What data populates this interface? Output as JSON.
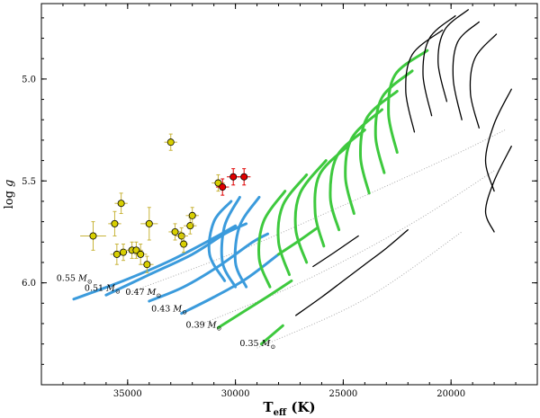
{
  "chart_data": {
    "type": "line",
    "title": "",
    "xlabel": "T_eff (K)",
    "xlabel_main": "T",
    "xlabel_sub": "eff",
    "xlabel_unit": " (K)",
    "ylabel": "log g",
    "ylabel_main": "log ",
    "ylabel_var": "g",
    "xlim": [
      39000,
      16000
    ],
    "ylim": [
      6.5,
      4.63
    ],
    "x_ticks": [
      35000,
      30000,
      25000,
      20000
    ],
    "x_tick_labels": [
      "35000",
      "30000",
      "25000",
      "20000"
    ],
    "y_ticks": [
      5.0,
      5.5,
      6.0
    ],
    "y_tick_labels": [
      "5.0",
      "5.5",
      "6.0"
    ],
    "colors": {
      "blue": "#3b9bdc",
      "green": "#3ec93e",
      "black": "#000000",
      "grey": "#aaaaaa",
      "yellow": "#d8cf00",
      "yellow_err": "#c8b43a",
      "red": "#e00000"
    },
    "mass_labels": [
      {
        "text": "0.55",
        "unit": "M",
        "sub": "⊙",
        "x": 38300,
        "y": 5.99
      },
      {
        "text": "0.51",
        "unit": "M",
        "sub": "⊙",
        "x": 37000,
        "y": 6.04
      },
      {
        "text": "0.47",
        "unit": "M",
        "sub": "⊙",
        "x": 35100,
        "y": 6.06
      },
      {
        "text": "0.43",
        "unit": "M",
        "sub": "⊙",
        "x": 33900,
        "y": 6.14
      },
      {
        "text": "0.39",
        "unit": "M",
        "sub": "⊙",
        "x": 32300,
        "y": 6.22
      },
      {
        "text": "0.35",
        "unit": "M",
        "sub": "⊙",
        "x": 29800,
        "y": 6.31
      }
    ],
    "series": [
      {
        "name": "Yellow observed stars",
        "color": "#d8cf00",
        "points": [
          {
            "x": 33000,
            "y": 5.31,
            "xerr": 300,
            "yerr": 0.04
          },
          {
            "x": 36600,
            "y": 5.77,
            "xerr": 600,
            "yerr": 0.07
          },
          {
            "x": 35600,
            "y": 5.71,
            "xerr": 300,
            "yerr": 0.06
          },
          {
            "x": 35300,
            "y": 5.61,
            "xerr": 300,
            "yerr": 0.05
          },
          {
            "x": 34000,
            "y": 5.71,
            "xerr": 400,
            "yerr": 0.08
          },
          {
            "x": 35500,
            "y": 5.86,
            "xerr": 300,
            "yerr": 0.05
          },
          {
            "x": 35200,
            "y": 5.85,
            "xerr": 200,
            "yerr": 0.04
          },
          {
            "x": 34800,
            "y": 5.84,
            "xerr": 300,
            "yerr": 0.04
          },
          {
            "x": 34600,
            "y": 5.84,
            "xerr": 300,
            "yerr": 0.04
          },
          {
            "x": 34400,
            "y": 5.86,
            "xerr": 300,
            "yerr": 0.05
          },
          {
            "x": 34100,
            "y": 5.91,
            "xerr": 300,
            "yerr": 0.04
          },
          {
            "x": 32800,
            "y": 5.75,
            "xerr": 300,
            "yerr": 0.04
          },
          {
            "x": 32500,
            "y": 5.77,
            "xerr": 300,
            "yerr": 0.04
          },
          {
            "x": 32400,
            "y": 5.81,
            "xerr": 200,
            "yerr": 0.04
          },
          {
            "x": 32100,
            "y": 5.72,
            "xerr": 300,
            "yerr": 0.04
          },
          {
            "x": 32000,
            "y": 5.67,
            "xerr": 300,
            "yerr": 0.04
          },
          {
            "x": 30800,
            "y": 5.51,
            "xerr": 300,
            "yerr": 0.04
          }
        ]
      },
      {
        "name": "Red observed stars",
        "color": "#e00000",
        "points": [
          {
            "x": 30600,
            "y": 5.53,
            "xerr": 300,
            "yerr": 0.04
          },
          {
            "x": 30100,
            "y": 5.48,
            "xerr": 300,
            "yerr": 0.04
          },
          {
            "x": 29600,
            "y": 5.48,
            "xerr": 300,
            "yerr": 0.04
          }
        ]
      },
      {
        "name": "Evolutionary tracks",
        "colors_by_phase": [
          "#3b9bdc",
          "#3ec93e",
          "#000000"
        ],
        "masses": [
          "0.35",
          "0.39",
          "0.43",
          "0.47",
          "0.51",
          "0.55"
        ]
      }
    ],
    "tracks": [
      {
        "mass": "0.55",
        "color": "#3b9bdc",
        "style": "solid",
        "points": [
          [
            37500,
            6.08
          ],
          [
            35200,
            5.99
          ],
          [
            33000,
            5.89
          ],
          [
            31000,
            5.78
          ],
          [
            30000,
            5.72
          ]
        ]
      },
      {
        "mass": "0.51",
        "color": "#3b9bdc",
        "style": "solid",
        "points": [
          [
            36000,
            6.06
          ],
          [
            34000,
            5.96
          ],
          [
            32000,
            5.86
          ],
          [
            30500,
            5.76
          ],
          [
            29500,
            5.71
          ]
        ]
      },
      {
        "mass": "0.47",
        "color": "#3b9bdc",
        "style": "solid",
        "points": [
          [
            34000,
            6.09
          ],
          [
            32400,
            6.02
          ],
          [
            30800,
            5.92
          ],
          [
            29200,
            5.8
          ],
          [
            28500,
            5.76
          ]
        ]
      },
      {
        "mass": "0.43",
        "color": "#3b9bdc",
        "style": "solid",
        "points": [
          [
            32500,
            6.15
          ],
          [
            31000,
            6.07
          ],
          [
            29500,
            5.98
          ],
          [
            28000,
            5.86
          ]
        ]
      },
      {
        "mass": "0.43",
        "color": "#3ec93e",
        "style": "solid",
        "points": [
          [
            28000,
            5.86
          ],
          [
            27000,
            5.79
          ],
          [
            26200,
            5.73
          ]
        ]
      },
      {
        "mass": "0.39",
        "color": "#3ec93e",
        "style": "solid",
        "points": [
          [
            30800,
            6.22
          ],
          [
            29600,
            6.14
          ],
          [
            28400,
            6.06
          ],
          [
            27400,
            5.99
          ]
        ]
      },
      {
        "mass": "0.39",
        "color": "#000000",
        "style": "solid",
        "points": [
          [
            26400,
            5.92
          ],
          [
            25400,
            5.85
          ],
          [
            24300,
            5.77
          ]
        ]
      },
      {
        "mass": "0.35",
        "color": "#3ec93e",
        "style": "solid",
        "points": [
          [
            28800,
            6.3
          ],
          [
            27800,
            6.21
          ]
        ]
      },
      {
        "mass": "0.35",
        "color": "#000000",
        "style": "solid",
        "points": [
          [
            27200,
            6.16
          ],
          [
            26000,
            6.07
          ],
          [
            25000,
            5.99
          ],
          [
            24000,
            5.91
          ],
          [
            23000,
            5.83
          ],
          [
            22000,
            5.74
          ]
        ]
      }
    ],
    "loops": [
      {
        "color": "#3b9bdc",
        "points": [
          [
            30200,
            5.6
          ],
          [
            31000,
            5.7
          ],
          [
            31200,
            5.86
          ],
          [
            30500,
            5.99
          ]
        ]
      },
      {
        "color": "#3b9bdc",
        "points": [
          [
            29800,
            5.58
          ],
          [
            30500,
            5.72
          ],
          [
            30600,
            5.9
          ],
          [
            30000,
            6.02
          ]
        ]
      },
      {
        "color": "#3b9bdc",
        "points": [
          [
            28900,
            5.58
          ],
          [
            29800,
            5.72
          ],
          [
            30000,
            5.9
          ],
          [
            29500,
            6.02
          ]
        ]
      },
      {
        "color": "#3ec93e",
        "points": [
          [
            27700,
            5.55
          ],
          [
            28700,
            5.7
          ],
          [
            28900,
            5.88
          ],
          [
            28400,
            6.02
          ]
        ]
      },
      {
        "color": "#3ec93e",
        "points": [
          [
            26700,
            5.47
          ],
          [
            27800,
            5.62
          ],
          [
            28000,
            5.8
          ],
          [
            27500,
            5.96
          ]
        ]
      },
      {
        "color": "#3ec93e",
        "points": [
          [
            25800,
            5.4
          ],
          [
            27000,
            5.56
          ],
          [
            27200,
            5.74
          ],
          [
            26700,
            5.9
          ]
        ]
      },
      {
        "color": "#3ec93e",
        "points": [
          [
            24800,
            5.33
          ],
          [
            26100,
            5.47
          ],
          [
            26300,
            5.66
          ],
          [
            25900,
            5.82
          ]
        ]
      },
      {
        "color": "#3ec93e",
        "points": [
          [
            24000,
            5.25
          ],
          [
            25300,
            5.38
          ],
          [
            25600,
            5.58
          ],
          [
            25200,
            5.74
          ]
        ]
      },
      {
        "color": "#3ec93e",
        "points": [
          [
            23200,
            5.15
          ],
          [
            24600,
            5.29
          ],
          [
            24900,
            5.48
          ],
          [
            24500,
            5.66
          ]
        ]
      },
      {
        "color": "#3ec93e",
        "points": [
          [
            22500,
            5.06
          ],
          [
            23900,
            5.19
          ],
          [
            24200,
            5.38
          ],
          [
            23800,
            5.56
          ]
        ]
      },
      {
        "color": "#3ec93e",
        "points": [
          [
            21800,
            4.96
          ],
          [
            23200,
            5.09
          ],
          [
            23500,
            5.28
          ],
          [
            23100,
            5.46
          ]
        ]
      },
      {
        "color": "#3ec93e",
        "points": [
          [
            21100,
            4.86
          ],
          [
            22600,
            4.98
          ],
          [
            22900,
            5.17
          ],
          [
            22500,
            5.36
          ]
        ]
      },
      {
        "color": "#000000",
        "points": [
          [
            20400,
            4.76
          ],
          [
            21800,
            4.88
          ],
          [
            22100,
            5.06
          ],
          [
            21700,
            5.26
          ]
        ]
      },
      {
        "color": "#000000",
        "points": [
          [
            19800,
            4.69
          ],
          [
            21000,
            4.8
          ],
          [
            21300,
            4.98
          ],
          [
            20900,
            5.18
          ]
        ]
      },
      {
        "color": "#000000",
        "points": [
          [
            19200,
            4.66
          ],
          [
            20300,
            4.76
          ],
          [
            20600,
            4.92
          ],
          [
            20200,
            5.11
          ]
        ]
      },
      {
        "color": "#000000",
        "points": [
          [
            18700,
            4.72
          ],
          [
            19700,
            4.82
          ],
          [
            19900,
            5.0
          ],
          [
            19500,
            5.2
          ]
        ]
      },
      {
        "color": "#000000",
        "points": [
          [
            17900,
            4.78
          ],
          [
            18900,
            4.9
          ],
          [
            19100,
            5.07
          ],
          [
            18700,
            5.24
          ]
        ]
      },
      {
        "color": "#000000",
        "points": [
          [
            17200,
            5.05
          ],
          [
            18000,
            5.22
          ],
          [
            18400,
            5.4
          ],
          [
            18000,
            5.55
          ]
        ]
      },
      {
        "color": "#000000",
        "points": [
          [
            17200,
            5.33
          ],
          [
            18000,
            5.5
          ],
          [
            18400,
            5.65
          ],
          [
            18000,
            5.75
          ]
        ]
      }
    ],
    "dotted_isochrones": [
      [
        [
          35000,
          6.05
        ],
        [
          30000,
          5.85
        ],
        [
          25000,
          5.62
        ],
        [
          20000,
          5.38
        ],
        [
          17500,
          5.25
        ]
      ],
      [
        [
          32000,
          6.22
        ],
        [
          27000,
          6.0
        ],
        [
          22000,
          5.72
        ],
        [
          18000,
          5.45
        ]
      ],
      [
        [
          29000,
          6.32
        ],
        [
          24000,
          6.08
        ],
        [
          19500,
          5.75
        ]
      ]
    ]
  }
}
